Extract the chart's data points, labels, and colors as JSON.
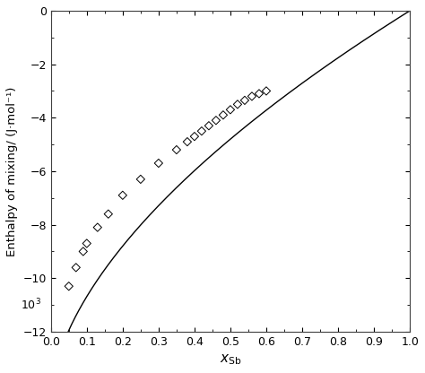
{
  "title": "",
  "xlabel": "$x_{\\mathrm{Sb}}$",
  "ylabel": "Enthalpy of mixing/ (J·mol⁻¹)",
  "xlim": [
    0,
    1.0
  ],
  "ylim": [
    -12,
    0
  ],
  "xticks": [
    0,
    0.1,
    0.2,
    0.3,
    0.4,
    0.5,
    0.6,
    0.7,
    0.8,
    0.9,
    1.0
  ],
  "yticks": [
    0,
    -2,
    -4,
    -6,
    -8,
    -10,
    -12
  ],
  "curve_color": "#000000",
  "marker_color": "#000000",
  "background_color": "#ffffff",
  "scatter_x": [
    0.05,
    0.07,
    0.09,
    0.1,
    0.13,
    0.16,
    0.2,
    0.25,
    0.3,
    0.35,
    0.38,
    0.4,
    0.42,
    0.44,
    0.46,
    0.48,
    0.5,
    0.52,
    0.54,
    0.56,
    0.58,
    0.6
  ],
  "scatter_y": [
    -10.3,
    -9.6,
    -9.0,
    -8.7,
    -8.1,
    -7.6,
    -6.9,
    -6.3,
    -5.7,
    -5.2,
    -4.9,
    -4.7,
    -4.5,
    -4.3,
    -4.1,
    -3.9,
    -3.7,
    -3.5,
    -3.35,
    -3.2,
    -3.1,
    -3.0
  ],
  "annotation_text": "10$^{3}$",
  "curve_A": -14.5,
  "curve_p": 0.58,
  "figsize": [
    4.74,
    4.16
  ],
  "dpi": 100
}
